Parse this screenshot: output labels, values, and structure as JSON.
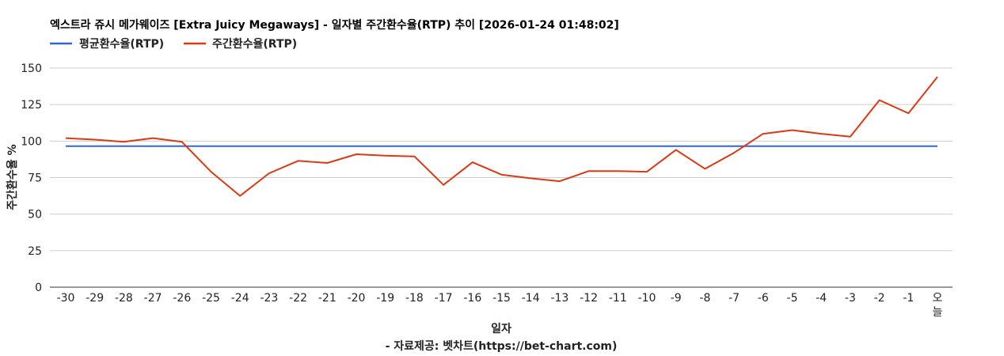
{
  "chart_data": {
    "type": "line",
    "title": "엑스트라 쥬시 메가웨이즈 [Extra Juicy Megaways] - 일자별 주간환수율(RTP) 추이 [2026-01-24 01:48:02]",
    "xlabel": "일자",
    "ylabel": "주간환수율 %",
    "credit": "- 자료제공: 벳차트(https://bet-chart.com)",
    "legend_position": "top-left",
    "grid": true,
    "ylim": [
      0,
      150
    ],
    "yticks": [
      "0",
      "25",
      "50",
      "75",
      "100",
      "125",
      "150"
    ],
    "categories": [
      "-30",
      "-29",
      "-28",
      "-27",
      "-26",
      "-25",
      "-24",
      "-23",
      "-22",
      "-21",
      "-20",
      "-19",
      "-18",
      "-17",
      "-16",
      "-15",
      "-14",
      "-13",
      "-12",
      "-11",
      "-10",
      "-9",
      "-8",
      "-7",
      "-6",
      "-5",
      "-4",
      "-3",
      "-2",
      "-1",
      "오늘"
    ],
    "series": [
      {
        "name": "평균환수율(RTP)",
        "color": "#3366cc",
        "values": [
          96.5,
          96.5,
          96.5,
          96.5,
          96.5,
          96.5,
          96.5,
          96.5,
          96.5,
          96.5,
          96.5,
          96.5,
          96.5,
          96.5,
          96.5,
          96.5,
          96.5,
          96.5,
          96.5,
          96.5,
          96.5,
          96.5,
          96.5,
          96.5,
          96.5,
          96.5,
          96.5,
          96.5,
          96.5,
          96.5,
          96.5
        ]
      },
      {
        "name": "주간환수율(RTP)",
        "color": "#dc3912",
        "values": [
          102,
          101,
          99.5,
          102,
          99.5,
          79,
          62.5,
          78,
          86.5,
          85,
          91,
          90,
          89.5,
          70,
          85.5,
          77,
          74.5,
          72.5,
          79.5,
          79.5,
          79,
          94,
          81,
          92,
          105,
          107.5,
          105,
          103,
          128,
          119,
          144
        ]
      }
    ]
  }
}
